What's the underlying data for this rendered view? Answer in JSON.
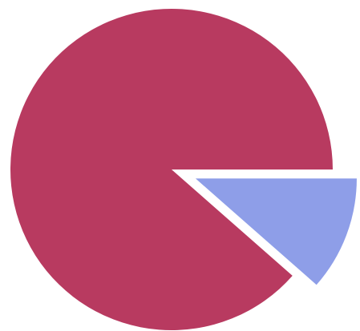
{
  "chart_data": {
    "type": "pie",
    "title": "",
    "slices": [
      {
        "value": 88.5,
        "color": "#b83a60",
        "exploded": false
      },
      {
        "value": 11.5,
        "color": "#8e9ee8",
        "exploded": true
      }
    ],
    "start_angle_deg": 0,
    "direction": "counterclockwise",
    "legend": "none"
  }
}
